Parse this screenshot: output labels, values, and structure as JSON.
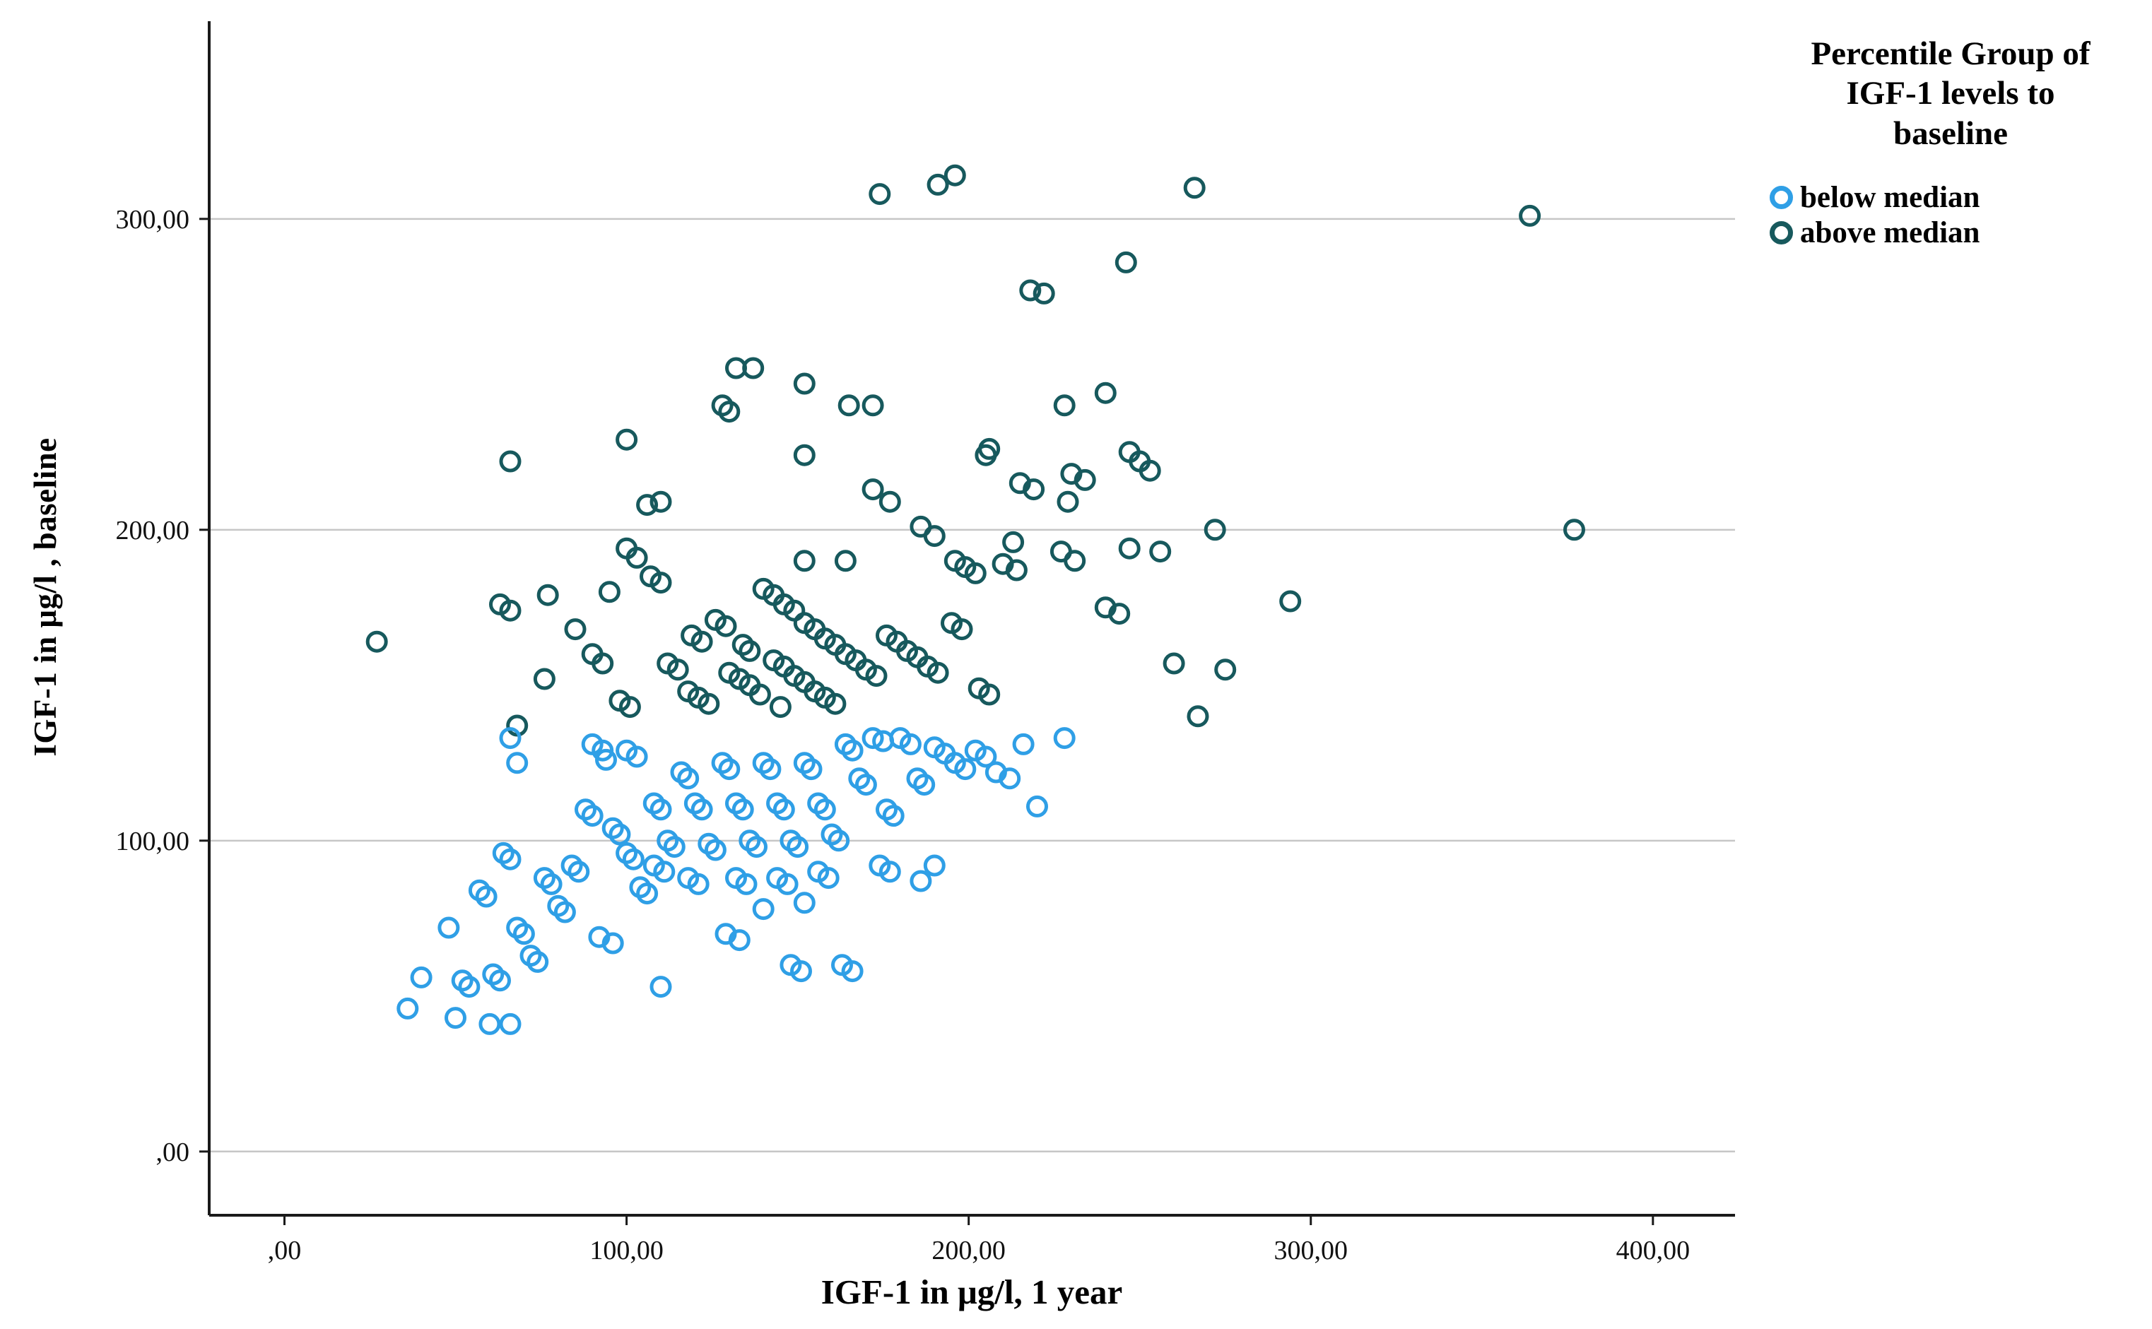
{
  "chart_data": {
    "type": "scatter",
    "title": "",
    "xlabel": "IGF-1 in μg/l, 1 year",
    "ylabel": "IGF-1 in μg/l , baseline",
    "xlim": [
      -22,
      424
    ],
    "ylim": [
      -20.5,
      363.6
    ],
    "grid": "horizontal-only",
    "gridlines_y": [
      0,
      100,
      200,
      300
    ],
    "x_ticks": [
      {
        "value": 0,
        "label": ",00"
      },
      {
        "value": 100,
        "label": "100,00"
      },
      {
        "value": 200,
        "label": "200,00"
      },
      {
        "value": 300,
        "label": "300,00"
      },
      {
        "value": 400,
        "label": "400,00"
      }
    ],
    "y_ticks": [
      {
        "value": 0,
        "label": ",00"
      },
      {
        "value": 100,
        "label": "100,00"
      },
      {
        "value": 200,
        "label": "200,00"
      },
      {
        "value": 300,
        "label": "300,00"
      }
    ],
    "colors": {
      "grid": "#c6c6c6",
      "axis": "#1a1a1a",
      "below_median": "#2f9fe6",
      "above_median": "#17595d"
    },
    "legend_position": "top-right",
    "legend": {
      "title_lines": [
        "Percentile Group of",
        "IGF-1 levels to",
        "baseline"
      ],
      "entries": [
        {
          "label": "below median",
          "color": "#2f9fe6"
        },
        {
          "label": "above median",
          "color": "#17595d"
        }
      ]
    },
    "series": [
      {
        "name": "above median",
        "key": "above-median",
        "color": "#17595d",
        "points": [
          [
            27,
            164
          ],
          [
            63,
            176
          ],
          [
            66,
            222
          ],
          [
            66,
            174
          ],
          [
            68,
            137
          ],
          [
            76,
            152
          ],
          [
            77,
            179
          ],
          [
            85,
            168
          ],
          [
            90,
            160
          ],
          [
            93,
            157
          ],
          [
            95,
            180
          ],
          [
            98,
            145
          ],
          [
            100,
            229
          ],
          [
            100,
            194
          ],
          [
            101,
            143
          ],
          [
            103,
            191
          ],
          [
            106,
            208
          ],
          [
            107,
            185
          ],
          [
            110,
            209
          ],
          [
            110,
            183
          ],
          [
            112,
            157
          ],
          [
            115,
            155
          ],
          [
            118,
            148
          ],
          [
            119,
            166
          ],
          [
            121,
            146
          ],
          [
            122,
            164
          ],
          [
            124,
            144
          ],
          [
            126,
            171
          ],
          [
            128,
            240
          ],
          [
            129,
            169
          ],
          [
            130,
            238
          ],
          [
            130,
            154
          ],
          [
            132,
            252
          ],
          [
            133,
            152
          ],
          [
            134,
            163
          ],
          [
            136,
            161
          ],
          [
            136,
            150
          ],
          [
            137,
            252
          ],
          [
            139,
            147
          ],
          [
            140,
            181
          ],
          [
            143,
            179
          ],
          [
            143,
            158
          ],
          [
            145,
            143
          ],
          [
            146,
            176
          ],
          [
            146,
            156
          ],
          [
            149,
            174
          ],
          [
            149,
            153
          ],
          [
            152,
            247
          ],
          [
            152,
            224
          ],
          [
            152,
            190
          ],
          [
            152,
            170
          ],
          [
            152,
            151
          ],
          [
            155,
            168
          ],
          [
            155,
            148
          ],
          [
            158,
            165
          ],
          [
            158,
            146
          ],
          [
            161,
            163
          ],
          [
            161,
            144
          ],
          [
            164,
            160
          ],
          [
            164,
            190
          ],
          [
            165,
            240
          ],
          [
            167,
            158
          ],
          [
            170,
            155
          ],
          [
            172,
            240
          ],
          [
            172,
            213
          ],
          [
            173,
            153
          ],
          [
            174,
            308
          ],
          [
            176,
            166
          ],
          [
            177,
            209
          ],
          [
            179,
            164
          ],
          [
            182,
            161
          ],
          [
            185,
            159
          ],
          [
            186,
            201
          ],
          [
            188,
            156
          ],
          [
            190,
            198
          ],
          [
            191,
            311
          ],
          [
            191,
            154
          ],
          [
            195,
            170
          ],
          [
            196,
            314
          ],
          [
            196,
            190
          ],
          [
            198,
            168
          ],
          [
            199,
            188
          ],
          [
            202,
            186
          ],
          [
            203,
            149
          ],
          [
            205,
            224
          ],
          [
            206,
            226
          ],
          [
            206,
            147
          ],
          [
            210,
            189
          ],
          [
            213,
            196
          ],
          [
            214,
            187
          ],
          [
            215,
            215
          ],
          [
            218,
            277
          ],
          [
            219,
            213
          ],
          [
            222,
            276
          ],
          [
            227,
            193
          ],
          [
            228,
            240
          ],
          [
            229,
            209
          ],
          [
            230,
            218
          ],
          [
            231,
            190
          ],
          [
            234,
            216
          ],
          [
            240,
            244
          ],
          [
            240,
            175
          ],
          [
            244,
            173
          ],
          [
            246,
            286
          ],
          [
            247,
            225
          ],
          [
            247,
            194
          ],
          [
            250,
            222
          ],
          [
            253,
            219
          ],
          [
            256,
            193
          ],
          [
            260,
            157
          ],
          [
            266,
            310
          ],
          [
            267,
            140
          ],
          [
            272,
            200
          ],
          [
            275,
            155
          ],
          [
            294,
            177
          ],
          [
            364,
            301
          ],
          [
            377,
            200
          ]
        ]
      },
      {
        "name": "below median",
        "key": "below-median",
        "color": "#2f9fe6",
        "points": [
          [
            36,
            46
          ],
          [
            40,
            56
          ],
          [
            48,
            72
          ],
          [
            50,
            43
          ],
          [
            52,
            55
          ],
          [
            54,
            53
          ],
          [
            57,
            84
          ],
          [
            59,
            82
          ],
          [
            60,
            41
          ],
          [
            61,
            57
          ],
          [
            63,
            55
          ],
          [
            64,
            96
          ],
          [
            66,
            133
          ],
          [
            66,
            94
          ],
          [
            66,
            41
          ],
          [
            68,
            125
          ],
          [
            68,
            72
          ],
          [
            70,
            70
          ],
          [
            72,
            63
          ],
          [
            74,
            61
          ],
          [
            76,
            88
          ],
          [
            78,
            86
          ],
          [
            80,
            79
          ],
          [
            82,
            77
          ],
          [
            84,
            92
          ],
          [
            86,
            90
          ],
          [
            88,
            110
          ],
          [
            90,
            131
          ],
          [
            90,
            108
          ],
          [
            92,
            69
          ],
          [
            93,
            129
          ],
          [
            94,
            126
          ],
          [
            96,
            104
          ],
          [
            96,
            67
          ],
          [
            98,
            102
          ],
          [
            100,
            129
          ],
          [
            100,
            96
          ],
          [
            102,
            94
          ],
          [
            103,
            127
          ],
          [
            104,
            85
          ],
          [
            106,
            83
          ],
          [
            108,
            112
          ],
          [
            108,
            92
          ],
          [
            110,
            110
          ],
          [
            110,
            53
          ],
          [
            111,
            90
          ],
          [
            112,
            100
          ],
          [
            114,
            98
          ],
          [
            116,
            122
          ],
          [
            118,
            120
          ],
          [
            118,
            88
          ],
          [
            120,
            112
          ],
          [
            121,
            86
          ],
          [
            122,
            110
          ],
          [
            124,
            99
          ],
          [
            126,
            97
          ],
          [
            128,
            125
          ],
          [
            129,
            70
          ],
          [
            130,
            123
          ],
          [
            132,
            112
          ],
          [
            132,
            88
          ],
          [
            133,
            68
          ],
          [
            134,
            110
          ],
          [
            135,
            86
          ],
          [
            136,
            100
          ],
          [
            138,
            98
          ],
          [
            140,
            125
          ],
          [
            140,
            78
          ],
          [
            142,
            123
          ],
          [
            144,
            112
          ],
          [
            144,
            88
          ],
          [
            146,
            110
          ],
          [
            147,
            86
          ],
          [
            148,
            100
          ],
          [
            148,
            60
          ],
          [
            150,
            98
          ],
          [
            151,
            58
          ],
          [
            152,
            125
          ],
          [
            152,
            80
          ],
          [
            154,
            123
          ],
          [
            156,
            112
          ],
          [
            156,
            90
          ],
          [
            158,
            110
          ],
          [
            159,
            88
          ],
          [
            160,
            102
          ],
          [
            162,
            100
          ],
          [
            163,
            60
          ],
          [
            164,
            131
          ],
          [
            166,
            129
          ],
          [
            166,
            58
          ],
          [
            168,
            120
          ],
          [
            170,
            118
          ],
          [
            172,
            133
          ],
          [
            174,
            92
          ],
          [
            175,
            132
          ],
          [
            176,
            110
          ],
          [
            177,
            90
          ],
          [
            178,
            108
          ],
          [
            180,
            133
          ],
          [
            183,
            131
          ],
          [
            185,
            120
          ],
          [
            186,
            87
          ],
          [
            187,
            118
          ],
          [
            190,
            130
          ],
          [
            190,
            92
          ],
          [
            193,
            128
          ],
          [
            196,
            125
          ],
          [
            199,
            123
          ],
          [
            202,
            129
          ],
          [
            205,
            127
          ],
          [
            208,
            122
          ],
          [
            212,
            120
          ],
          [
            216,
            131
          ],
          [
            220,
            111
          ],
          [
            228,
            133
          ]
        ]
      }
    ]
  }
}
